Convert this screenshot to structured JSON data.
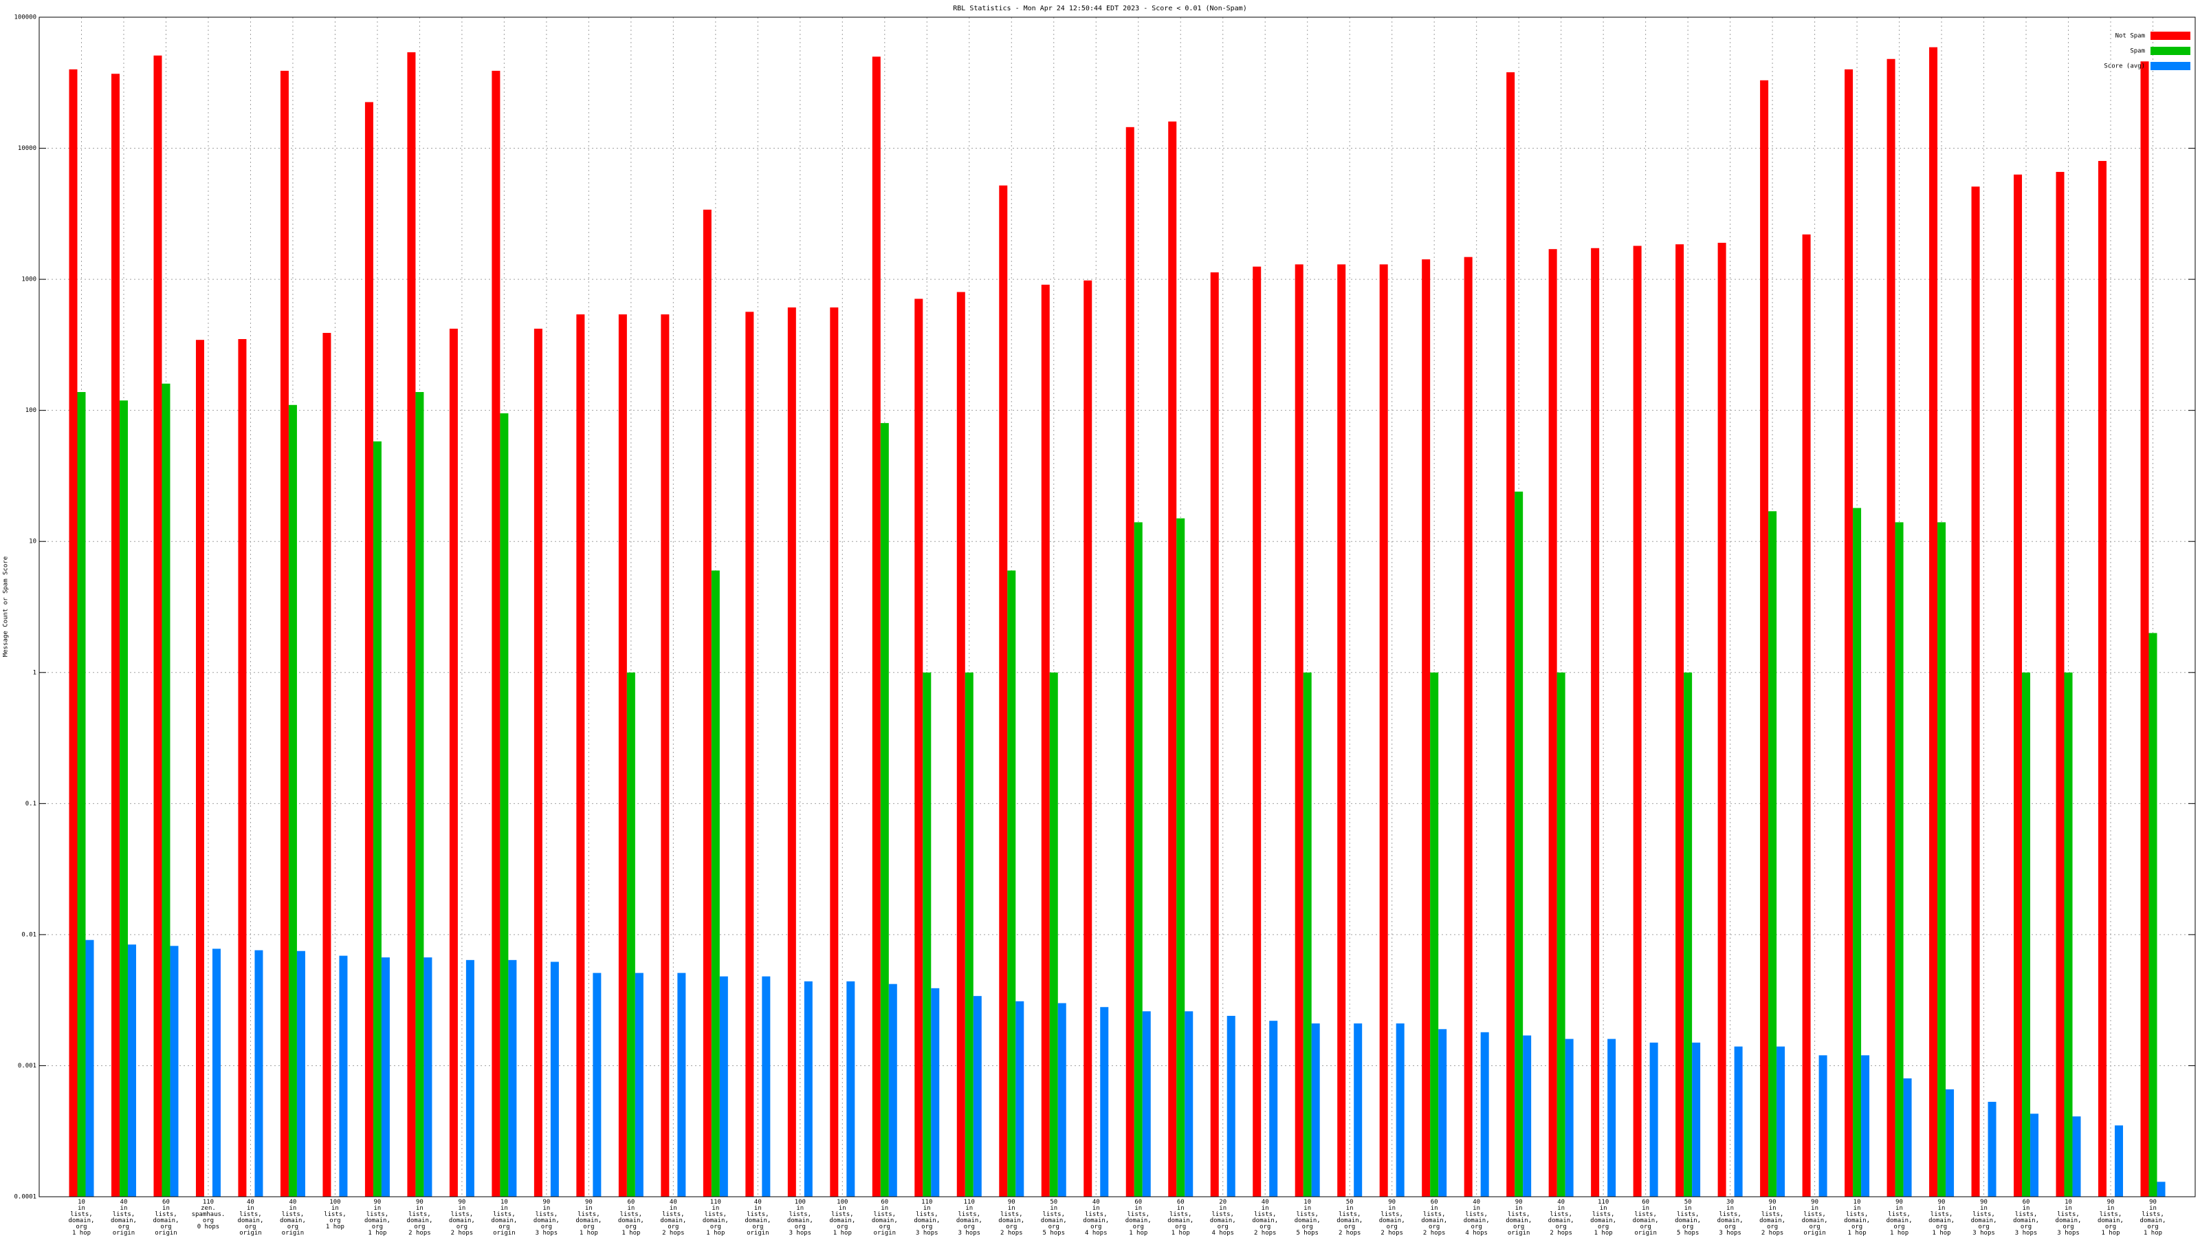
{
  "chart_data": {
    "type": "bar",
    "title": "RBL Statistics - Mon Apr 24 12:50:44 EDT 2023 - Score < 0.01 (Non-Spam)",
    "y_label": "Message Count or Spam Score",
    "log_y": true,
    "grid": true,
    "legend": "top-right",
    "ylim": [
      0.0001,
      100000
    ],
    "yticks": [
      0.0001,
      0.001,
      0.01,
      0.1,
      1,
      10,
      100,
      1000,
      10000,
      100000
    ],
    "categories": [
      "10\nin\nlists,\ndomain,\norg\n1 hop",
      "40\nin\nlists,\ndomain,\norg\norigin",
      "60\nin\nlists,\ndomain,\norg\norigin",
      "110\nzen.\nspamhaus.\norg\n0 hops",
      "40\nin\nlists,\ndomain,\norg\norigin",
      "40\nin\nlists,\ndomain,\norg\norigin",
      "100\nin\nlists,\norg\n1 hop",
      "90\nin\nlists,\ndomain,\norg\n1 hop",
      "90\nin\nlists,\ndomain,\norg\n2 hops",
      "90\nin\nlists,\ndomain,\norg\n2 hops",
      "10\nin\nlists,\ndomain,\norg\norigin",
      "90\nin\nlists,\ndomain,\norg\n3 hops",
      "90\nin\nlists,\ndomain,\norg\n1 hop",
      "60\nin\nlists,\ndomain,\norg\n1 hop",
      "40\nin\nlists,\ndomain,\norg\n2 hops",
      "110\nin\nlists,\ndomain,\norg\n1 hop",
      "40\nin\nlists,\ndomain,\norg\norigin",
      "100\nin\nlists,\ndomain,\norg\n3 hops",
      "100\nin\nlists,\ndomain,\norg\n1 hop",
      "60\nin\nlists,\ndomain,\norg\norigin",
      "110\nin\nlists,\ndomain,\norg\n3 hops",
      "110\nin\nlists,\ndomain,\norg\n3 hops",
      "90\nin\nlists,\ndomain,\norg\n2 hops",
      "50\nin\nlists,\ndomain,\norg\n5 hops",
      "40\nin\nlists,\ndomain,\norg\n4 hops",
      "60\nin\nlists,\ndomain,\norg\n1 hop",
      "60\nin\nlists,\ndomain,\norg\n1 hop",
      "20\nin\nlists,\ndomain,\norg\n4 hops",
      "40\nin\nlists,\ndomain,\norg\n2 hops",
      "10\nin\nlists,\ndomain,\norg\n5 hops",
      "50\nin\nlists,\ndomain,\norg\n2 hops",
      "90\nin\nlists,\ndomain,\norg\n2 hops",
      "60\nin\nlists,\ndomain,\norg\n2 hops",
      "40\nin\nlists,\ndomain,\norg\n4 hops",
      "90\nin\nlists,\ndomain,\norg\norigin",
      "40\nin\nlists,\ndomain,\norg\n2 hops",
      "110\nin\nlists,\ndomain,\norg\n1 hop",
      "60\nin\nlists,\ndomain,\norg\norigin",
      "50\nin\nlists,\ndomain,\norg\n5 hops",
      "30\nin\nlists,\ndomain,\norg\n3 hops",
      "90\nin\nlists,\ndomain,\norg\n2 hops",
      "90\nin\nlists,\ndomain,\norg\norigin",
      "10\nin\nlists,\ndomain,\norg\n1 hop",
      "90\nin\nlists,\ndomain,\norg\n1 hop",
      "90\nin\nlists,\ndomain,\norg\n1 hop",
      "90\nin\nlists,\ndomain,\norg\n3 hops",
      "60\nin\nlists,\ndomain,\norg\n3 hops",
      "10\nin\nlists,\ndomain,\norg\n3 hops",
      "90\nin\nlists,\ndomain,\norg\n1 hop",
      "90\nin\nlists,\ndomain,\norg\n1 hop"
    ],
    "series": [
      {
        "name": "Not Spam",
        "color": "#ff0000",
        "values": [
          40000,
          37000,
          51000,
          345,
          350,
          39000,
          390,
          22500,
          54000,
          420,
          39000,
          420,
          540,
          540,
          540,
          3400,
          565,
          610,
          610,
          50000,
          710,
          800,
          5200,
          910,
          980,
          14500,
          16000,
          1130,
          1250,
          1300,
          1300,
          1300,
          1420,
          1480,
          38000,
          1700,
          1730,
          1800,
          1850,
          1900,
          33000,
          2200,
          40000,
          48000,
          59000,
          5100,
          6300,
          6600,
          8000,
          46000
        ]
      },
      {
        "name": "Spam",
        "color": "#00c000",
        "values": [
          138,
          119,
          160,
          null,
          null,
          110,
          null,
          58,
          138,
          null,
          95,
          null,
          null,
          1,
          null,
          6,
          null,
          null,
          null,
          80,
          1,
          1,
          6,
          1,
          null,
          14,
          15,
          null,
          null,
          1,
          null,
          null,
          1,
          null,
          24,
          1,
          null,
          null,
          1,
          null,
          17,
          null,
          18,
          14,
          14,
          null,
          1,
          1,
          null,
          2
        ]
      },
      {
        "name": "Score (avg)",
        "color": "#0080ff",
        "values": [
          0.0091,
          0.0084,
          0.0082,
          0.0078,
          0.0076,
          0.0075,
          0.0069,
          0.0067,
          0.0067,
          0.0064,
          0.0064,
          0.0062,
          0.0051,
          0.0051,
          0.0051,
          0.0048,
          0.0048,
          0.0044,
          0.0044,
          0.0042,
          0.0039,
          0.0034,
          0.0031,
          0.003,
          0.0028,
          0.0026,
          0.0026,
          0.0024,
          0.0022,
          0.0021,
          0.0021,
          0.0021,
          0.0019,
          0.0018,
          0.0017,
          0.0016,
          0.0016,
          0.0015,
          0.0015,
          0.0014,
          0.0014,
          0.0012,
          0.0012,
          0.0008,
          0.00066,
          0.00053,
          0.00043,
          0.00041,
          0.00035,
          0.00013
        ]
      }
    ]
  }
}
